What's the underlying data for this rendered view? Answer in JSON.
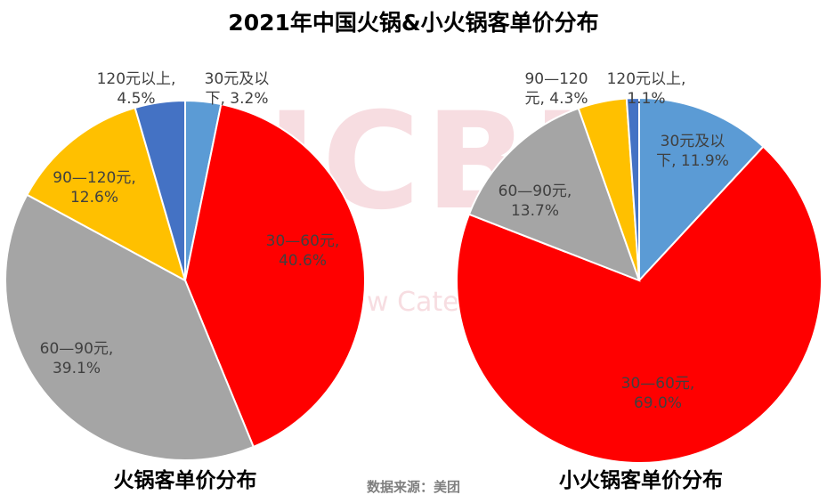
{
  "title": "2021年中国火锅&小火锅客单价分布",
  "source": "数据来源：美团",
  "colors": {
    "blue": "#5b9bd5",
    "red": "#ff0000",
    "gray": "#a5a5a5",
    "yellow": "#ffc000",
    "darkblue": "#4472c4"
  },
  "chart_data": [
    {
      "type": "pie",
      "title": "火锅客单价分布",
      "slices": [
        {
          "label": "30元及以下",
          "value": 3.2,
          "color": "#5b9bd5",
          "text": [
            "30元及以",
            "下, 3.2%"
          ]
        },
        {
          "label": "30—60元",
          "value": 40.6,
          "color": "#ff0000",
          "text": [
            "30—60元,",
            "40.6%"
          ]
        },
        {
          "label": "60—90元",
          "value": 39.1,
          "color": "#a5a5a5",
          "text": [
            "60—90元,",
            "39.1%"
          ]
        },
        {
          "label": "90—120元",
          "value": 12.6,
          "color": "#ffc000",
          "text": [
            "90—120元,",
            "12.6%"
          ]
        },
        {
          "label": "120元以上",
          "value": 4.5,
          "color": "#4472c4",
          "text": [
            "120元以上,",
            "4.5%"
          ]
        }
      ]
    },
    {
      "type": "pie",
      "title": "小火锅客单价分布",
      "slices": [
        {
          "label": "30元及以下",
          "value": 11.9,
          "color": "#5b9bd5",
          "text": [
            "30元及以",
            "下, 11.9%"
          ]
        },
        {
          "label": "30—60元",
          "value": 69.0,
          "color": "#ff0000",
          "text": [
            "30—60元,",
            "69.0%"
          ]
        },
        {
          "label": "60—90元",
          "value": 13.7,
          "color": "#a5a5a5",
          "text": [
            "60—90元,",
            "13.7%"
          ]
        },
        {
          "label": "90—120元",
          "value": 4.3,
          "color": "#ffc000",
          "text": [
            "90—120",
            "元, 4.3%"
          ]
        },
        {
          "label": "120元以上",
          "value": 1.1,
          "color": "#4472c4",
          "text": [
            "120元以上,",
            "1.1%"
          ]
        }
      ]
    }
  ]
}
